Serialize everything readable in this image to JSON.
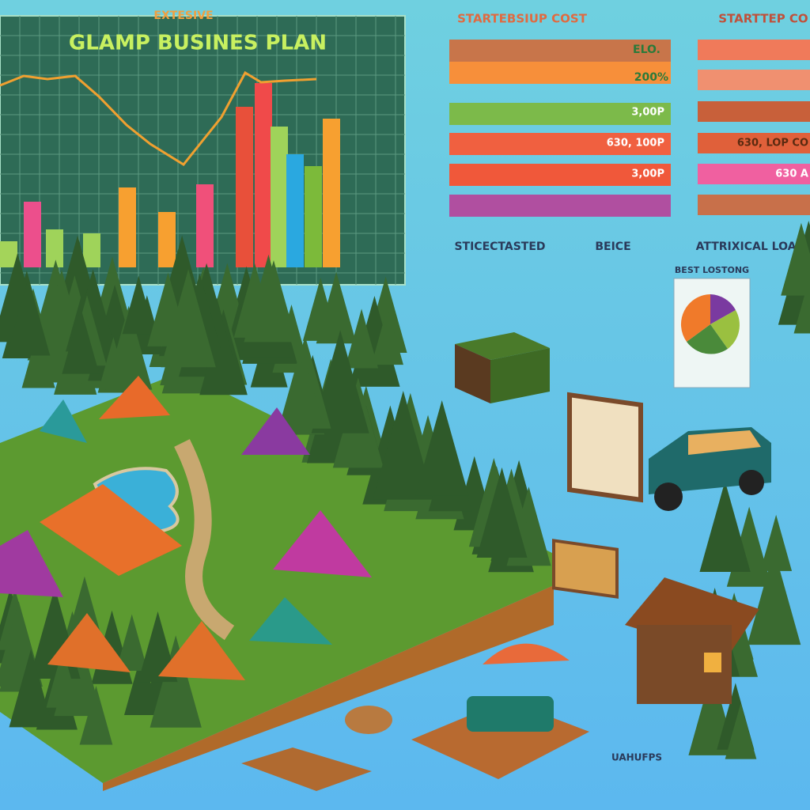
{
  "header": {
    "subtitle": "EXTESIVE",
    "title": "GLAMP BUSINES PLAN"
  },
  "cost_panels": [
    {
      "title": "STARTEBSIUP COST",
      "bar_labels": [
        "ELO.",
        "200%",
        "3,00P",
        "630, 100P",
        "3,00P"
      ]
    },
    {
      "title": "STARTTEP CO",
      "bar_labels": [
        "630, LOP CO",
        "630 A"
      ]
    }
  ],
  "labels": [
    "STICECTASTED",
    "BEICE",
    "ATTRIXICAL LOAM",
    "BEST LOSTONG",
    "UAHUFPS"
  ]
}
